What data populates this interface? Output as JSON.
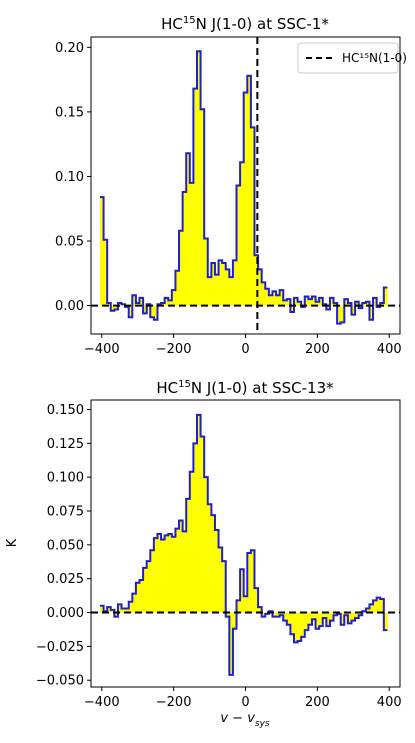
{
  "colors": {
    "fill": "#ffff00",
    "step": "#1f1fcc",
    "refline": "#000000",
    "axis": "#000000"
  },
  "chart_data": [
    {
      "type": "area",
      "title_pre": "HC",
      "title_sup": "15",
      "title_post": "N J(1-0) at SSC-1*",
      "xlabel": "",
      "ylabel": "",
      "xlim": [
        -430,
        430
      ],
      "ylim": [
        -0.022,
        0.208
      ],
      "xticks": [
        -400,
        -200,
        0,
        200,
        400
      ],
      "xtick_labels": [
        "−400",
        "−200",
        "0",
        "200",
        "400"
      ],
      "yticks": [
        0.0,
        0.05,
        0.1,
        0.15,
        0.2
      ],
      "ytick_labels": [
        "0.00",
        "0.05",
        "0.10",
        "0.15",
        "0.20"
      ],
      "vline": 33,
      "legend": {
        "label": "HC¹⁵N(1-0)",
        "position": "top-right"
      },
      "step_width": 10,
      "x": [
        -400,
        -390,
        -380,
        -370,
        -360,
        -350,
        -340,
        -330,
        -320,
        -310,
        -300,
        -290,
        -280,
        -270,
        -260,
        -250,
        -240,
        -230,
        -220,
        -210,
        -200,
        -190,
        -180,
        -170,
        -160,
        -150,
        -140,
        -130,
        -120,
        -110,
        -100,
        -90,
        -80,
        -70,
        -60,
        -50,
        -40,
        -30,
        -20,
        -10,
        0,
        10,
        20,
        30,
        40,
        50,
        60,
        70,
        80,
        90,
        100,
        110,
        120,
        130,
        140,
        150,
        160,
        170,
        180,
        190,
        200,
        210,
        220,
        230,
        240,
        250,
        260,
        270,
        280,
        290,
        300,
        310,
        320,
        330,
        340,
        350,
        360,
        370,
        380,
        390
      ],
      "values": [
        0.084,
        0.051,
        0.002,
        -0.004,
        -0.003,
        0.002,
        0.001,
        -0.001,
        -0.009,
        0.008,
        0.002,
        0.006,
        -0.006,
        0.001,
        -0.009,
        -0.011,
        0.001,
        0.002,
        0.006,
        0.004,
        0.012,
        0.027,
        0.058,
        0.088,
        0.118,
        0.095,
        0.168,
        0.197,
        0.152,
        0.052,
        0.022,
        0.033,
        0.024,
        0.035,
        0.033,
        0.028,
        0.022,
        0.035,
        0.093,
        0.111,
        0.165,
        0.178,
        0.138,
        0.039,
        0.028,
        0.018,
        0.013,
        0.008,
        0.011,
        0.008,
        0.012,
        0.004,
        0.005,
        -0.005,
        0.006,
        0.003,
        -0.001,
        0.007,
        0.005,
        0.007,
        0.003,
        0.006,
        0.001,
        -0.003,
        0.006,
        0.002,
        -0.014,
        -0.013,
        0.005,
        0.002,
        -0.007,
        0.003,
        -0.002,
        0.002,
        0.003,
        -0.011,
        0.006,
        -0.001,
        0.002,
        0.014
      ]
    },
    {
      "type": "area",
      "title_pre": "HC",
      "title_sup": "15",
      "title_post": "N J(1-0) at SSC-13*",
      "xlabel_main": "v − v",
      "xlabel_sub": "sys",
      "ylabel": "K",
      "xlim": [
        -430,
        430
      ],
      "ylim": [
        -0.055,
        0.157
      ],
      "xticks": [
        -400,
        -200,
        0,
        200,
        400
      ],
      "xtick_labels": [
        "−400",
        "−200",
        "0",
        "200",
        "400"
      ],
      "yticks": [
        -0.05,
        -0.025,
        0.0,
        0.025,
        0.05,
        0.075,
        0.1,
        0.125,
        0.15
      ],
      "ytick_labels": [
        "−0.050",
        "−0.025",
        "0.000",
        "0.025",
        "0.050",
        "0.075",
        "0.100",
        "0.125",
        "0.150"
      ],
      "step_width": 10,
      "x": [
        -400,
        -390,
        -380,
        -370,
        -360,
        -350,
        -340,
        -330,
        -320,
        -310,
        -300,
        -290,
        -280,
        -270,
        -260,
        -250,
        -240,
        -230,
        -220,
        -210,
        -200,
        -190,
        -180,
        -170,
        -160,
        -150,
        -140,
        -130,
        -120,
        -110,
        -100,
        -90,
        -80,
        -70,
        -60,
        -50,
        -40,
        -30,
        -20,
        -10,
        0,
        10,
        20,
        30,
        40,
        50,
        60,
        70,
        80,
        90,
        100,
        110,
        120,
        130,
        140,
        150,
        160,
        170,
        180,
        190,
        200,
        210,
        220,
        230,
        240,
        250,
        260,
        270,
        280,
        290,
        300,
        310,
        320,
        330,
        340,
        350,
        360,
        370,
        380,
        390
      ],
      "values": [
        0.005,
        0.001,
        0.004,
        0.002,
        -0.003,
        0.006,
        0.003,
        0.003,
        0.008,
        0.014,
        0.022,
        0.024,
        0.033,
        0.038,
        0.046,
        0.055,
        0.058,
        0.054,
        0.057,
        0.058,
        0.056,
        0.062,
        0.068,
        0.06,
        0.084,
        0.104,
        0.125,
        0.146,
        0.13,
        0.1,
        0.08,
        0.072,
        0.061,
        0.048,
        0.038,
        -0.003,
        -0.046,
        -0.012,
        0.009,
        0.032,
        0.012,
        0.044,
        0.046,
        0.018,
        0.004,
        -0.003,
        -0.001,
        0.001,
        -0.003,
        -0.003,
        -0.002,
        -0.006,
        -0.009,
        -0.016,
        -0.022,
        -0.021,
        -0.018,
        -0.013,
        -0.009,
        -0.005,
        -0.012,
        -0.01,
        -0.004,
        -0.01,
        -0.006,
        -0.002,
        -0.001,
        -0.009,
        -0.002,
        -0.008,
        -0.006,
        -0.004,
        -0.002,
        0.001,
        0.003,
        0.006,
        0.009,
        0.011,
        0.01,
        -0.013
      ]
    }
  ]
}
